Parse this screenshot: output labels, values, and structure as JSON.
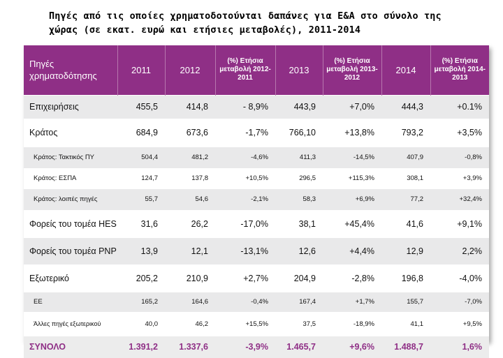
{
  "title": "Πηγές από τις οποίες χρηματοδοτούνται δαπάνες για Ε&Α στο σύνολο της χώρας (σε εκατ. ευρώ και ετήσιες μεταβολές), 2011-2014",
  "table": {
    "headers": [
      "Πηγές χρηματοδότησης",
      "2011",
      "2012",
      "(%) Ετήσια μεταβολή 2012-2011",
      "2013",
      "(%) Ετήσια μεταβολή 2013-2012",
      "2014",
      "(%) Ετήσια μεταβολή 2014-2013"
    ],
    "rows": [
      [
        "Επιχειρήσεις",
        "455,5",
        "414,8",
        "- 8,9%",
        "443,9",
        "+7,0%",
        "444,3",
        "+0.1%"
      ],
      [
        "Κράτος",
        "684,9",
        "673,6",
        "-1,7%",
        "766,10",
        "+13,8%",
        "793,2",
        "+3,5%"
      ],
      [
        "Κράτος: Τακτικός ΠΥ",
        "504,4",
        "481,2",
        "-4,6%",
        "411,3",
        "-14,5%",
        "407,9",
        "-0,8%"
      ],
      [
        "Κράτος: ΕΣΠΑ",
        "124,7",
        "137,8",
        "+10,5%",
        "296,5",
        "+115,3%",
        "308,1",
        "+3,9%"
      ],
      [
        "Κράτος: λοιπές πηγές",
        "55,7",
        "54,6",
        "-2,1%",
        "58,3",
        "+6,9%",
        "77,2",
        "+32,4%"
      ],
      [
        "Φορείς του τομέα HES",
        "31,6",
        "26,2",
        "-17,0%",
        "38,1",
        "+45,4%",
        "41,6",
        "+9,1%"
      ],
      [
        "Φορείς του τομέα PNP",
        "13,9",
        "12,1",
        "-13,1%",
        "12,6",
        "+4,4%",
        "12,9",
        "2,2%"
      ],
      [
        "Εξωτερικό",
        "205,2",
        "210,9",
        "+2,7%",
        "204,9",
        "-2,8%",
        "196,8",
        "-4,0%"
      ],
      [
        "ΕΕ",
        "165,2",
        "164,6",
        "-0,4%",
        "167,4",
        "+1,7%",
        "155,7",
        "-7,0%"
      ],
      [
        "Άλλες πηγές εξωτερικού",
        "40,0",
        "46,2",
        "+15,5%",
        "37,5",
        "-18,9%",
        "41,1",
        "+9,5%"
      ],
      [
        "ΣΥΝΟΛΟ",
        "1.391,2",
        "1.337,6",
        "-3,9%",
        "1.465,7",
        "+9,6%",
        "1.488,7",
        "1,6%"
      ]
    ]
  },
  "colors": {
    "header_bg": "#8f2f86",
    "total_text": "#8f2f86",
    "row_shade": "#e9e9ea"
  }
}
